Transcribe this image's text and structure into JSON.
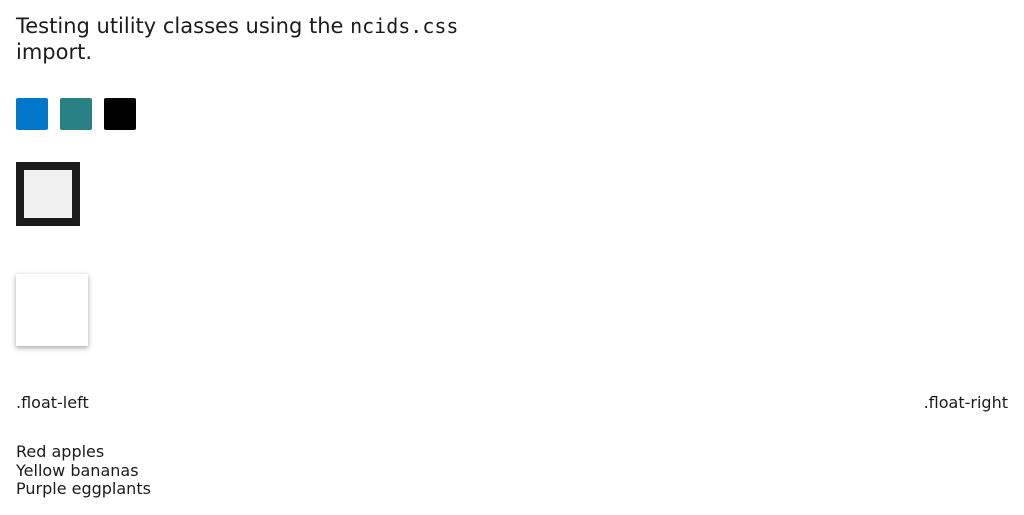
{
  "heading": {
    "text_before": "Testing utility classes using the ",
    "code": "ncids.css",
    "text_after": " import."
  },
  "colors": {
    "swatch_primary": "#0077c8",
    "swatch_teal": "#298085",
    "swatch_black": "#000000",
    "border_dark": "#1b1b1b",
    "fill_light_gray": "#f0f0f0"
  },
  "floats": {
    "left_label": ".float-left",
    "right_label": ".float-right"
  },
  "list": {
    "items": [
      "Red apples",
      "Yellow bananas",
      "Purple eggplants"
    ]
  }
}
